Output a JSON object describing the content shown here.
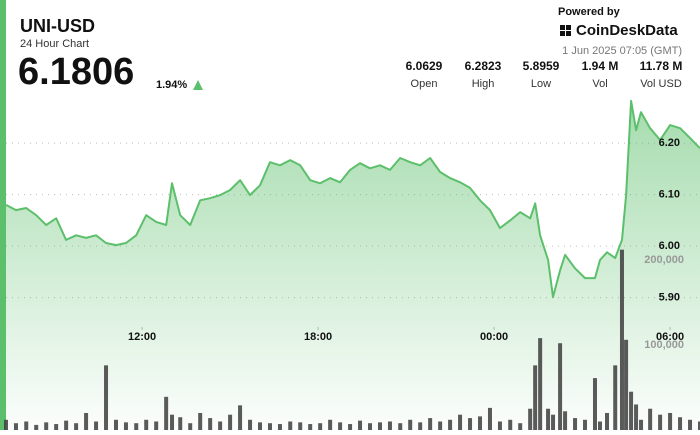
{
  "header": {
    "title": "UNI-USD",
    "subtitle": "24 Hour Chart",
    "price": "6.1806",
    "change": "1.94%"
  },
  "stats": [
    {
      "value": "6.0629",
      "label": "Open"
    },
    {
      "value": "6.2823",
      "label": "High"
    },
    {
      "value": "5.8959",
      "label": "Low"
    },
    {
      "value": "1.94 M",
      "label": "Vol"
    },
    {
      "value": "11.78 M",
      "label": "Vol USD"
    }
  ],
  "branding": {
    "powered": "Powered by",
    "brand": "CoinDeskData",
    "date": "1 Jun 2025 07:05 (GMT)"
  },
  "chart_data": {
    "type": "line",
    "x": [
      7.36,
      7.7,
      8.05,
      8.39,
      8.73,
      9.07,
      9.41,
      9.75,
      10.09,
      10.43,
      10.77,
      11.11,
      11.45,
      11.8,
      12.14,
      12.48,
      12.82,
      13.02,
      13.3,
      13.64,
      13.98,
      14.32,
      14.66,
      15.0,
      15.34,
      15.68,
      16.02,
      16.36,
      16.7,
      17.05,
      17.39,
      17.73,
      18.07,
      18.41,
      18.75,
      19.09,
      19.43,
      19.77,
      20.11,
      20.45,
      20.8,
      21.14,
      21.48,
      21.82,
      22.16,
      22.5,
      22.84,
      23.18,
      23.52,
      23.86,
      24.2,
      24.55,
      24.89,
      25.23,
      25.4,
      25.57,
      25.84,
      26.01,
      26.25,
      26.42,
      26.76,
      27.1,
      27.44,
      27.61,
      27.85,
      28.13,
      28.36,
      28.5,
      28.67,
      28.84,
      29.01,
      29.32,
      29.66,
      30.0,
      30.34,
      30.68,
      31.02
    ],
    "series": [
      {
        "name": "Price",
        "color": "#5cbf6b",
        "values": [
          6.08,
          6.07,
          6.074,
          6.06,
          6.041,
          6.054,
          6.012,
          6.021,
          6.016,
          6.021,
          6.006,
          6.002,
          6.006,
          6.021,
          6.06,
          6.047,
          6.041,
          6.122,
          6.06,
          6.041,
          6.089,
          6.093,
          6.099,
          6.109,
          6.128,
          6.099,
          6.118,
          6.163,
          6.157,
          6.167,
          6.157,
          6.128,
          6.122,
          6.132,
          6.124,
          6.148,
          6.161,
          6.151,
          6.157,
          6.148,
          6.171,
          6.163,
          6.157,
          6.171,
          6.144,
          6.132,
          6.124,
          6.113,
          6.089,
          6.07,
          6.035,
          6.05,
          6.066,
          6.054,
          6.083,
          6.021,
          5.973,
          5.901,
          5.953,
          5.983,
          5.957,
          5.938,
          5.938,
          5.973,
          5.988,
          5.977,
          6.012,
          6.099,
          6.282,
          6.225,
          6.26,
          6.229,
          6.206,
          6.235,
          6.229,
          6.21,
          6.19
        ]
      },
      {
        "name": "Volume",
        "color": "#3d3d3d",
        "type": "bar",
        "axis": "y2",
        "values": [
          12000,
          8000,
          10000,
          6000,
          9000,
          7000,
          11000,
          8000,
          20000,
          10000,
          76000,
          12000,
          9000,
          8000,
          12000,
          10000,
          39000,
          18000,
          15000,
          8000,
          20000,
          14000,
          10000,
          18000,
          29000,
          12000,
          9000,
          8000,
          7000,
          10000,
          9000,
          7000,
          8000,
          12000,
          9000,
          7000,
          11000,
          8000,
          9000,
          10000,
          8000,
          12000,
          9000,
          14000,
          10000,
          12000,
          18000,
          14000,
          16000,
          26000,
          10000,
          12000,
          8000,
          25000,
          76000,
          108000,
          25000,
          18000,
          102000,
          22000,
          14000,
          12000,
          61000,
          10000,
          20000,
          76000,
          212000,
          106000,
          45000,
          30000,
          12000,
          25000,
          18000,
          20000,
          15000,
          12000,
          10000
        ]
      }
    ],
    "xlim": [
      7.36,
      31.02
    ],
    "xticks": [
      {
        "value": 12,
        "label": "12:00"
      },
      {
        "value": 18,
        "label": "18:00"
      },
      {
        "value": 24,
        "label": "00:00"
      },
      {
        "value": 30,
        "label": "06:00"
      }
    ],
    "ylim": [
      5.643,
      6.307
    ],
    "yticks": [
      {
        "value": 5.9,
        "label": "5.90"
      },
      {
        "value": 6,
        "label": "6.00"
      },
      {
        "value": 6.1,
        "label": "6.10"
      },
      {
        "value": 6.2,
        "label": "6.20"
      }
    ],
    "y2lim": [
      0,
      402000
    ],
    "y2ticks": [
      {
        "value": 100000,
        "label": "100,000"
      },
      {
        "value": 200000,
        "label": "200,000"
      }
    ],
    "grid": true
  }
}
